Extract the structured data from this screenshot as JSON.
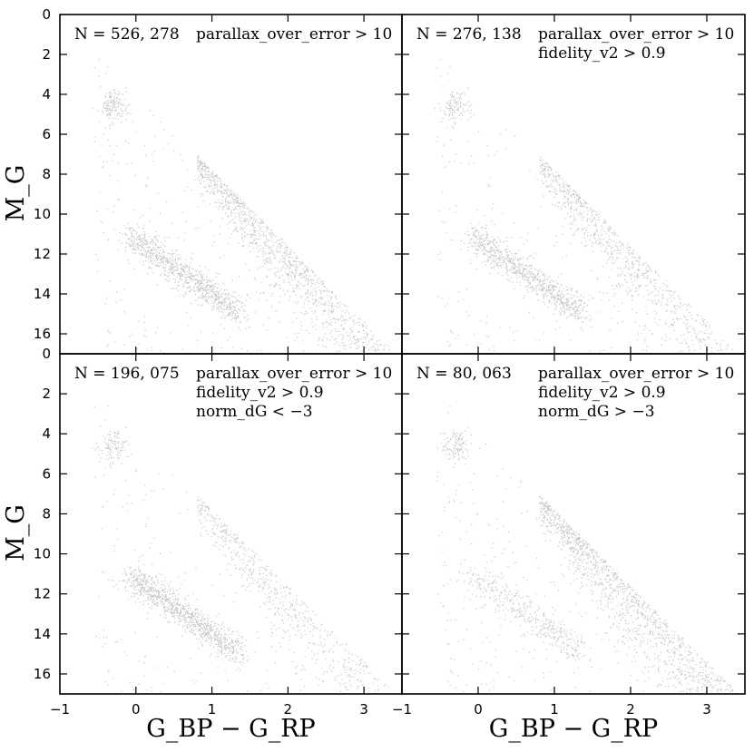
{
  "chart_data": {
    "type": "scatter",
    "layout": "2x2 grid, shared axes",
    "xlabel": "G_BP − G_RP",
    "ylabel": "M_G",
    "xlim": [
      -1,
      3.5
    ],
    "ylim": [
      17,
      0
    ],
    "y_inverted": true,
    "xticks": [
      "−1",
      "0",
      "1",
      "2",
      "3"
    ],
    "xtick_values": [
      -1,
      0,
      1,
      2,
      3
    ],
    "yticks": [
      "0",
      "2",
      "4",
      "6",
      "8",
      "10",
      "12",
      "14",
      "16"
    ],
    "ytick_values": [
      0,
      2,
      4,
      6,
      8,
      10,
      12,
      14,
      16
    ],
    "panels": [
      {
        "id": "top-left",
        "n_label": "N = 526, 278",
        "n_value": 526278,
        "cuts": [
          "parallax_over_error > 10"
        ],
        "density": 1.0,
        "ms_weight": 0.45,
        "wd_weight": 0.3
      },
      {
        "id": "top-right",
        "n_label": "N = 276, 138",
        "n_value": 276138,
        "cuts": [
          "parallax_over_error > 10",
          "fidelity_v2 > 0.9"
        ],
        "density": 0.72,
        "ms_weight": 0.4,
        "wd_weight": 0.35
      },
      {
        "id": "bottom-left",
        "n_label": "N = 196, 075",
        "n_value": 196075,
        "cuts": [
          "parallax_over_error > 10",
          "fidelity_v2 > 0.9",
          "norm_dG < −3"
        ],
        "density": 0.62,
        "ms_weight": 0.3,
        "wd_weight": 0.45
      },
      {
        "id": "bottom-right",
        "n_label": "N = 80, 063",
        "n_value": 80063,
        "cuts": [
          "parallax_over_error > 10",
          "fidelity_v2 > 0.9",
          "norm_dG > −3"
        ],
        "density": 0.35,
        "ms_weight": 0.55,
        "wd_weight": 0.15
      }
    ]
  }
}
